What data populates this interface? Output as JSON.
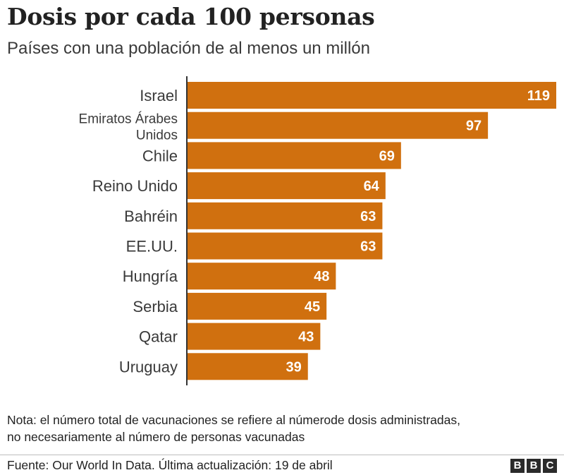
{
  "chart_data": {
    "type": "bar",
    "orientation": "horizontal",
    "title": "Dosis por cada 100 personas",
    "subtitle": "Países con una población de al menos un millón",
    "categories": [
      "Israel",
      "Emiratos Árabes Unidos",
      "Chile",
      "Reino Unido",
      "Bahréin",
      "EE.UU.",
      "Hungría",
      "Serbia",
      "Qatar",
      "Uruguay"
    ],
    "values": [
      119,
      97,
      69,
      64,
      63,
      63,
      48,
      45,
      43,
      39
    ],
    "xlim": [
      0,
      119
    ],
    "grid": false,
    "legend": false,
    "data_labels": "inside-end",
    "bar_color": "#d0700f",
    "label_color": "#ffffff"
  },
  "note": {
    "line1": "Nota: el número total de vacunaciones se refiere al númerode dosis administradas,",
    "line2": "no necesariamente al número de personas vacunadas"
  },
  "source": "Fuente: Our World In Data. Última actualización: 19 de abril",
  "logo": [
    "B",
    "B",
    "C"
  ]
}
